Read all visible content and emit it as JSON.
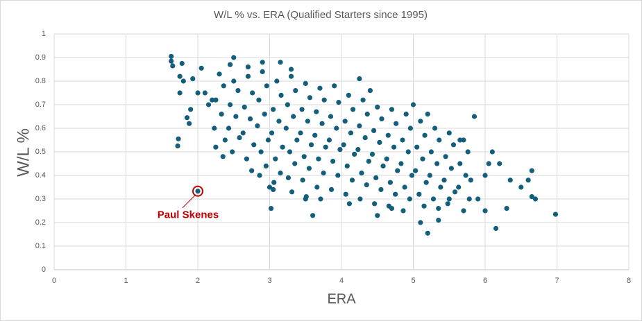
{
  "chart_data": {
    "type": "scatter",
    "title": "W/L % vs. ERA (Qualified Starters since 1995)",
    "x_label": "ERA",
    "y_label": "W/L %",
    "color": "#135e7a",
    "x": [
      1.63,
      1.63,
      1.65,
      1.78,
      1.75,
      1.8,
      1.75,
      1.93,
      1.73,
      1.72,
      1.85,
      1.88,
      1.9,
      2.05,
      2.0,
      2.1,
      2.15,
      2.2,
      2.25,
      2.35,
      2.5,
      2.45,
      3.02,
      3.0,
      3.05,
      3.6,
      3.5,
      5.2,
      5.1,
      5.35,
      6.15,
      6.0,
      6.3,
      6.7,
      6.65,
      6.98,
      6.65,
      6.6,
      6.1,
      6.2,
      6.35,
      6.5,
      6.05,
      5.85,
      5.8,
      4.25,
      2.9,
      3.15,
      3.3,
      2.7,
      5.2,
      4.5,
      4.7,
      5.5,
      5.7,
      5.9,
      6.0,
      5.65,
      5.0,
      4.4,
      2.3,
      2.36,
      2.25,
      2.33,
      2.23,
      2.38,
      2.5,
      2.56,
      2.45,
      2.53,
      2.43,
      2.58,
      2.48,
      2.7,
      2.76,
      2.65,
      2.73,
      2.63,
      2.78,
      2.68,
      2.75,
      2.9,
      2.96,
      2.85,
      2.93,
      2.83,
      2.98,
      2.88,
      2.95,
      2.86,
      3.1,
      3.16,
      3.05,
      3.13,
      3.03,
      3.18,
      3.08,
      3.15,
      3.06,
      3.3,
      3.36,
      3.25,
      3.33,
      3.23,
      3.38,
      3.28,
      3.35,
      3.26,
      3.31,
      3.5,
      3.56,
      3.45,
      3.53,
      3.43,
      3.58,
      3.48,
      3.55,
      3.46,
      3.51,
      3.7,
      3.76,
      3.65,
      3.73,
      3.63,
      3.78,
      3.68,
      3.75,
      3.66,
      3.71,
      3.9,
      3.96,
      3.85,
      3.93,
      3.83,
      3.98,
      3.88,
      3.95,
      3.86,
      4.1,
      4.16,
      4.05,
      4.13,
      4.03,
      4.18,
      4.08,
      4.15,
      4.06,
      4.11,
      4.3,
      4.36,
      4.25,
      4.33,
      4.23,
      4.38,
      4.28,
      4.35,
      4.26,
      4.5,
      4.56,
      4.45,
      4.53,
      4.43,
      4.58,
      4.48,
      4.55,
      4.46,
      4.7,
      4.76,
      4.65,
      4.73,
      4.63,
      4.78,
      4.68,
      4.75,
      4.66,
      4.9,
      4.96,
      4.85,
      4.93,
      4.83,
      4.98,
      4.88,
      4.95,
      4.86,
      5.1,
      5.16,
      5.05,
      5.13,
      5.03,
      5.18,
      5.08,
      5.15,
      5.3,
      5.36,
      5.25,
      5.33,
      5.23,
      5.38,
      5.28,
      5.35,
      5.5,
      5.56,
      5.45,
      5.53,
      5.43,
      5.58,
      5.48,
      5.7,
      5.76,
      5.65,
      5.73,
      5.63,
      5.78
    ],
    "values": [
      0.905,
      0.885,
      0.865,
      0.875,
      0.82,
      0.8,
      0.75,
      0.81,
      0.555,
      0.525,
      0.645,
      0.62,
      0.68,
      0.855,
      0.75,
      0.75,
      0.7,
      0.72,
      0.52,
      0.48,
      0.9,
      0.87,
      0.26,
      0.35,
      0.34,
      0.23,
      0.3,
      0.155,
      0.2,
      0.21,
      0.175,
      0.25,
      0.26,
      0.3,
      0.31,
      0.235,
      0.42,
      0.38,
      0.5,
      0.45,
      0.38,
      0.35,
      0.45,
      0.65,
      0.38,
      0.81,
      0.88,
      0.88,
      0.85,
      0.86,
      0.66,
      0.23,
      0.26,
      0.3,
      0.25,
      0.3,
      0.4,
      0.55,
      0.7,
      0.76,
      0.83,
      0.78,
      0.72,
      0.66,
      0.6,
      0.55,
      0.8,
      0.76,
      0.7,
      0.65,
      0.6,
      0.56,
      0.5,
      0.82,
      0.75,
      0.69,
      0.64,
      0.58,
      0.53,
      0.47,
      0.42,
      0.84,
      0.78,
      0.72,
      0.66,
      0.61,
      0.55,
      0.5,
      0.44,
      0.4,
      0.8,
      0.74,
      0.68,
      0.63,
      0.58,
      0.52,
      0.47,
      0.41,
      0.37,
      0.82,
      0.76,
      0.7,
      0.65,
      0.6,
      0.55,
      0.5,
      0.45,
      0.39,
      0.33,
      0.79,
      0.73,
      0.68,
      0.63,
      0.58,
      0.53,
      0.48,
      0.43,
      0.38,
      0.31,
      0.77,
      0.72,
      0.67,
      0.62,
      0.57,
      0.52,
      0.47,
      0.41,
      0.35,
      0.3,
      0.78,
      0.71,
      0.65,
      0.6,
      0.55,
      0.51,
      0.46,
      0.4,
      0.34,
      0.74,
      0.68,
      0.63,
      0.58,
      0.53,
      0.49,
      0.44,
      0.38,
      0.32,
      0.28,
      0.72,
      0.66,
      0.61,
      0.56,
      0.51,
      0.46,
      0.41,
      0.36,
      0.3,
      0.69,
      0.64,
      0.59,
      0.54,
      0.49,
      0.44,
      0.39,
      0.34,
      0.28,
      0.68,
      0.62,
      0.57,
      0.52,
      0.47,
      0.42,
      0.37,
      0.32,
      0.27,
      0.66,
      0.6,
      0.55,
      0.5,
      0.45,
      0.4,
      0.35,
      0.3,
      0.25,
      0.63,
      0.57,
      0.52,
      0.47,
      0.42,
      0.37,
      0.32,
      0.27,
      0.6,
      0.55,
      0.5,
      0.45,
      0.4,
      0.35,
      0.3,
      0.26,
      0.58,
      0.53,
      0.48,
      0.43,
      0.38,
      0.33,
      0.28,
      0.55,
      0.5,
      0.45,
      0.4,
      0.35,
      0.3
    ],
    "xlim": [
      0,
      8
    ],
    "xticks": [
      0,
      1,
      2,
      3,
      4,
      5,
      6,
      7,
      8
    ],
    "ylim": [
      0,
      1
    ],
    "yticks": [
      0,
      0.1,
      0.2,
      0.3,
      0.4,
      0.5,
      0.6,
      0.7,
      0.8,
      0.9,
      1
    ],
    "grid": true,
    "annotations": [
      {
        "text": "Paul Skenes",
        "x": 2.0,
        "y": 0.333,
        "color": "#c00000"
      }
    ]
  }
}
